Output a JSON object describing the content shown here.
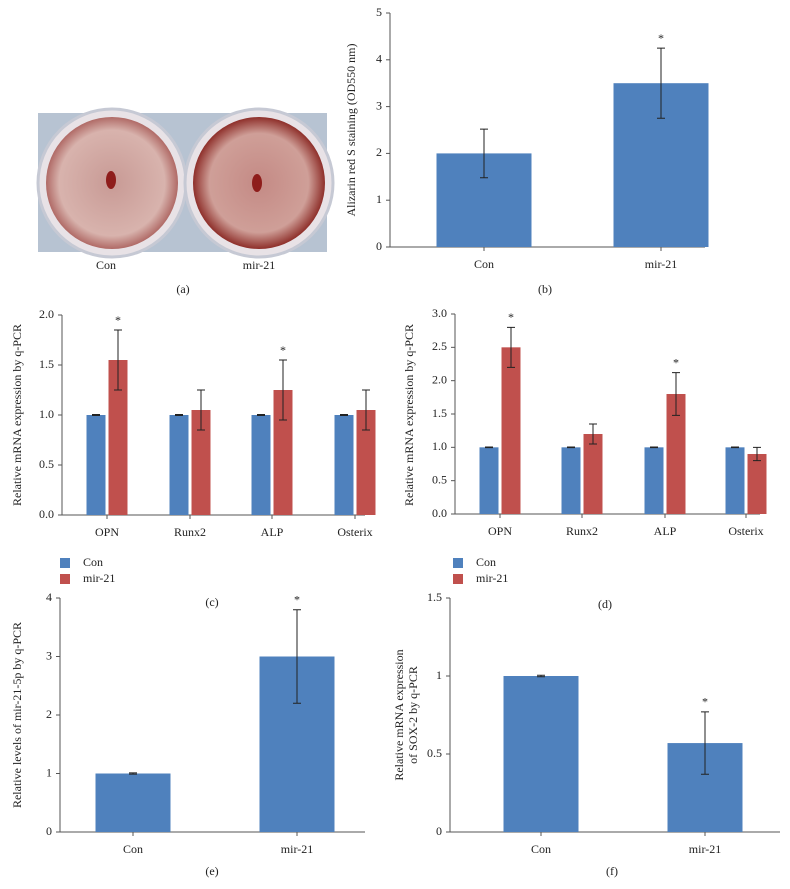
{
  "image_panel": {
    "labels": [
      "Con",
      "mir-21"
    ],
    "caption": "(a)"
  },
  "chart_data": [
    {
      "type": "bar",
      "ylabel": [
        "Alizarin red S staining (OD550 nm)"
      ],
      "caption": "(b)",
      "categories": [
        "Con",
        "mir-21"
      ],
      "values": [
        2,
        3.5
      ],
      "errors": [
        0.52,
        0.75
      ],
      "markers": [
        null,
        "*"
      ],
      "color": "#4f81bd",
      "ylim": [
        0,
        5
      ],
      "yticks": [
        0,
        1,
        2,
        3,
        4,
        5
      ]
    },
    {
      "type": "grouped_bar",
      "ylabel": [
        "Relative mRNA expression by q-PCR"
      ],
      "caption": "(c)",
      "categories": [
        "OPN",
        "Runx2",
        "ALP",
        "Osterix"
      ],
      "series": [
        {
          "name": "Con",
          "color": "#4f81bd",
          "values": [
            1,
            1,
            1,
            1
          ],
          "errors": [
            0.005,
            0.005,
            0.005,
            0.005
          ],
          "markers": [
            null,
            null,
            null,
            null
          ]
        },
        {
          "name": "mir-21",
          "color": "#c0504d",
          "values": [
            1.55,
            1.05,
            1.25,
            1.05
          ],
          "errors": [
            0.3,
            0.2,
            0.3,
            0.2
          ],
          "markers": [
            "*",
            null,
            "*",
            null
          ]
        }
      ],
      "ylim": [
        0,
        2
      ],
      "yticks": [
        {
          "value": 0,
          "label": "0.0"
        },
        {
          "value": 0.5,
          "label": "0.5"
        },
        {
          "value": 1,
          "label": "1.0"
        },
        {
          "value": 1.5,
          "label": "1.5"
        },
        {
          "value": 2,
          "label": "2.0"
        }
      ]
    },
    {
      "type": "grouped_bar",
      "ylabel": [
        "Relative mRNA expression by q-PCR"
      ],
      "caption": "(d)",
      "categories": [
        "OPN",
        "Runx2",
        "ALP",
        "Osterix"
      ],
      "series": [
        {
          "name": "Con",
          "color": "#4f81bd",
          "values": [
            1,
            1,
            1,
            1
          ],
          "errors": [
            0.005,
            0.005,
            0.005,
            0.005
          ],
          "markers": [
            null,
            null,
            null,
            null
          ]
        },
        {
          "name": "mir-21",
          "color": "#c0504d",
          "values": [
            2.5,
            1.2,
            1.8,
            0.9
          ],
          "errors": [
            0.3,
            0.15,
            0.32,
            0.1
          ],
          "markers": [
            "*",
            null,
            "*",
            null
          ]
        }
      ],
      "ylim": [
        0,
        3
      ],
      "yticks": [
        {
          "value": 0,
          "label": "0.0"
        },
        {
          "value": 0.5,
          "label": "0.5"
        },
        {
          "value": 1,
          "label": "1.0"
        },
        {
          "value": 1.5,
          "label": "1.5"
        },
        {
          "value": 2,
          "label": "2.0"
        },
        {
          "value": 2.5,
          "label": "2.5"
        },
        {
          "value": 3,
          "label": "3.0"
        }
      ]
    },
    {
      "type": "bar",
      "ylabel": [
        "Relative levels of mir-21-5p by q-PCR"
      ],
      "caption": "(e)",
      "categories": [
        "Con",
        "mir-21"
      ],
      "values": [
        1,
        3
      ],
      "errors": [
        0.01,
        0.8
      ],
      "markers": [
        null,
        "*"
      ],
      "color": "#4f81bd",
      "ylim": [
        0,
        4
      ],
      "yticks": [
        0,
        1,
        2,
        3,
        4
      ]
    },
    {
      "type": "bar",
      "ylabel": [
        "Relative mRNA expression",
        "of SOX-2 by q-PCR"
      ],
      "caption": "(f)",
      "categories": [
        "Con",
        "mir-21"
      ],
      "values": [
        1,
        0.57
      ],
      "errors": [
        0.005,
        0.2
      ],
      "markers": [
        null,
        "*"
      ],
      "color": "#4f81bd",
      "ylim": [
        0,
        1.5
      ],
      "yticks": [
        0,
        0.5,
        1,
        1.5
      ]
    }
  ]
}
